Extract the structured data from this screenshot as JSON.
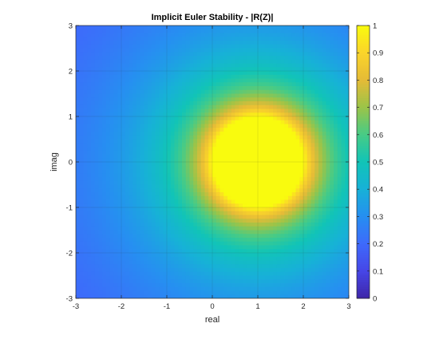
{
  "chart_data": {
    "type": "heatmap",
    "title": "Implicit Euler Stability - |R(Z)|",
    "xlabel": "real",
    "ylabel": "imag",
    "xlim": [
      -3,
      3
    ],
    "ylim": [
      -3,
      3
    ],
    "x_ticks": [
      -3,
      -2,
      -1,
      0,
      1,
      2,
      3
    ],
    "y_ticks": [
      -3,
      -2,
      -1,
      0,
      1,
      2,
      3
    ],
    "grid": true,
    "function": "|1/(1 - z)| for z = x + i*y, plotted over x (real) and y (imag), color clipped at 1",
    "color_limits": [
      0,
      1
    ],
    "colorbar": {
      "position": "right",
      "ticks": [
        0,
        0.1,
        0.2,
        0.3,
        0.4,
        0.5,
        0.6,
        0.7,
        0.8,
        0.9,
        1
      ],
      "tick_labels": [
        "0",
        "0.1",
        "0.2",
        "0.3",
        "0.4",
        "0.5",
        "0.6",
        "0.7",
        "0.8",
        "0.9",
        "1"
      ],
      "colormap": "parula"
    }
  }
}
